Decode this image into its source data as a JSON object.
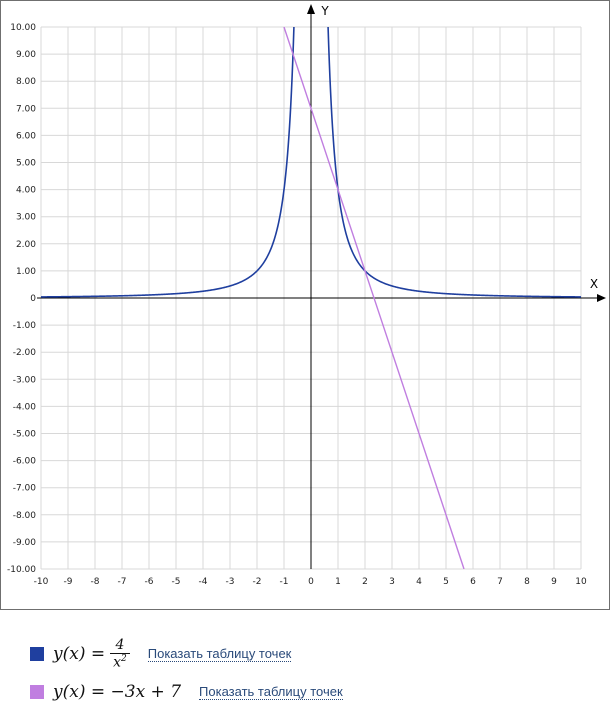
{
  "chart_data": {
    "type": "line",
    "xlabel": "X",
    "ylabel": "Y",
    "xlim": [
      -10,
      10
    ],
    "ylim": [
      -10,
      10
    ],
    "grid": true,
    "x_ticks": [
      "-10",
      "-9",
      "-8",
      "-7",
      "-6",
      "-5",
      "-4",
      "-3",
      "-2",
      "-1",
      "0",
      "1",
      "2",
      "3",
      "4",
      "5",
      "6",
      "7",
      "8",
      "9",
      "10"
    ],
    "y_ticks": [
      "10.00",
      "9.00",
      "8.00",
      "7.00",
      "6.00",
      "5.00",
      "4.00",
      "3.00",
      "2.00",
      "1.00",
      "0",
      "-1.00",
      "-2.00",
      "-3.00",
      "-4.00",
      "-5.00",
      "-6.00",
      "-7.00",
      "-8.00",
      "-9.00",
      "-10.00"
    ],
    "series": [
      {
        "formula": "y = 4 / x^2",
        "color": "#1f3f9f",
        "samples": [
          [
            -10,
            0.04
          ],
          [
            -5,
            0.16
          ],
          [
            -2,
            1
          ],
          [
            -1,
            4
          ],
          [
            -0.64,
            9.77
          ],
          [
            0.64,
            9.77
          ],
          [
            1,
            4
          ],
          [
            2,
            1
          ],
          [
            5,
            0.16
          ],
          [
            10,
            0.04
          ]
        ]
      },
      {
        "formula": "y = -3x + 7",
        "color": "#c07ee0",
        "samples": [
          [
            -1,
            10
          ],
          [
            0,
            7
          ],
          [
            1,
            4
          ],
          [
            2,
            1
          ],
          [
            2.33,
            0
          ],
          [
            3,
            -2
          ],
          [
            4,
            -5
          ],
          [
            5,
            -8
          ],
          [
            5.67,
            -10
          ]
        ]
      }
    ]
  },
  "legend": [
    {
      "lhs": "y(x) =",
      "num": "4",
      "den": "x",
      "den_exp": "2",
      "rhs": "",
      "link": "Показать таблицу точек",
      "color": "#1f3f9f"
    },
    {
      "lhs": "y(x) = −3x + 7",
      "num": "",
      "den": "",
      "den_exp": "",
      "rhs": "",
      "link": "Показать таблицу точек",
      "color": "#c07ee0"
    }
  ]
}
